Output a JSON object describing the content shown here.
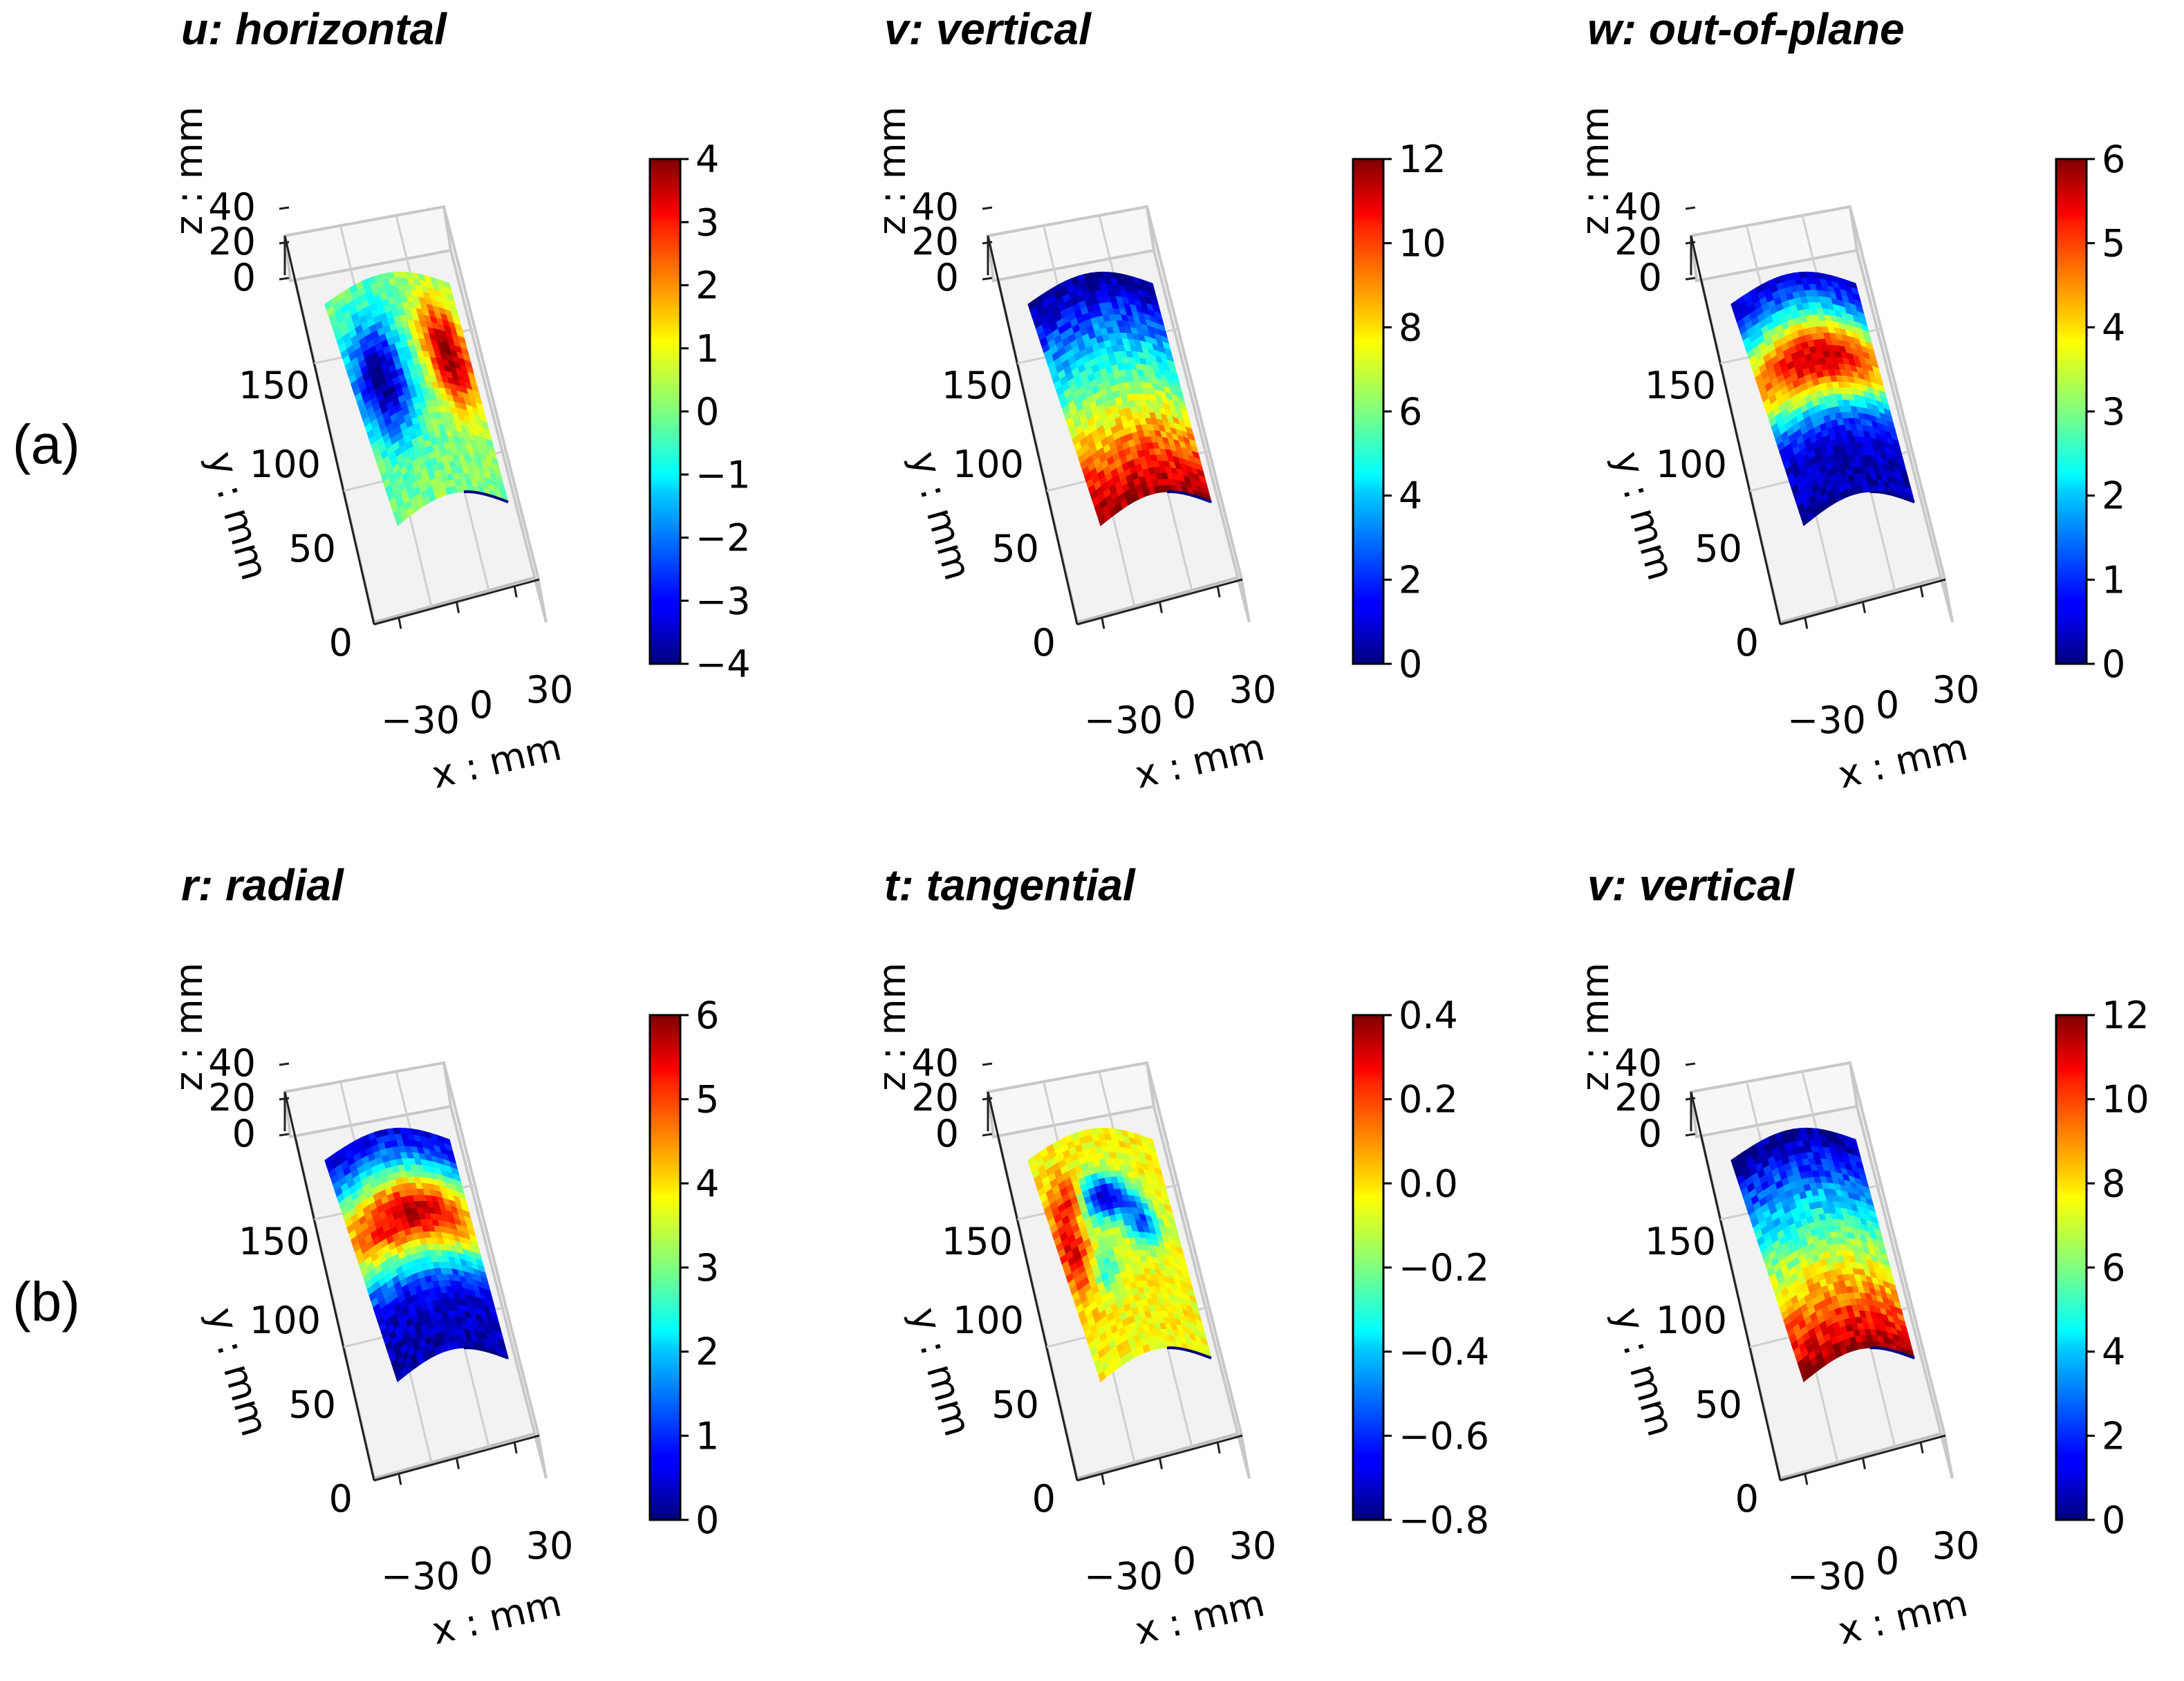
{
  "figure": {
    "row_labels": [
      "(a)",
      "(b)"
    ]
  },
  "chart_data": [
    {
      "type": "surface3d",
      "row": "(a)",
      "title": "u: horizontal",
      "xlabel": "x : mm",
      "ylabel": "y : mm",
      "zlabel": "z : mm",
      "x_ticks": [
        "−30",
        "0",
        "30"
      ],
      "y_ticks": [
        "0",
        "50",
        "100",
        "150"
      ],
      "z_ticks": [
        "0",
        "20",
        "40"
      ],
      "colormap": "jet",
      "clim": [
        -4,
        4
      ],
      "colorbar_ticks": [
        "−4",
        "−3",
        "−2",
        "−1",
        "0",
        "1",
        "2",
        "3",
        "4"
      ],
      "field": {
        "base": 0.0,
        "blobs": [
          [
            0.22,
            0.42,
            0.22,
            0.26,
            -4.0
          ],
          [
            0.82,
            0.36,
            0.2,
            0.24,
            4.0
          ]
        ],
        "gradient": 0,
        "noise": 0.12
      }
    },
    {
      "type": "surface3d",
      "row": "(a)",
      "title": "v: vertical",
      "xlabel": "x : mm",
      "ylabel": "y : mm",
      "zlabel": "z : mm",
      "x_ticks": [
        "−30",
        "0",
        "30"
      ],
      "y_ticks": [
        "0",
        "50",
        "100",
        "150"
      ],
      "z_ticks": [
        "0",
        "20",
        "40"
      ],
      "colormap": "jet",
      "clim": [
        0,
        12
      ],
      "colorbar_ticks": [
        "0",
        "2",
        "4",
        "6",
        "8",
        "10",
        "12"
      ],
      "field": {
        "base": 0.0,
        "blobs": [],
        "gradient": 12.0,
        "noise": 0.15
      }
    },
    {
      "type": "surface3d",
      "row": "(a)",
      "title": "w: out-of-plane",
      "xlabel": "x : mm",
      "ylabel": "y : mm",
      "zlabel": "z : mm",
      "x_ticks": [
        "−30",
        "0",
        "30"
      ],
      "y_ticks": [
        "0",
        "50",
        "100",
        "150"
      ],
      "z_ticks": [
        "0",
        "20",
        "40"
      ],
      "colormap": "jet",
      "clim": [
        0,
        6
      ],
      "colorbar_ticks": [
        "0",
        "1",
        "2",
        "3",
        "4",
        "5",
        "6"
      ],
      "field": {
        "base": 0.3,
        "blobs": [
          [
            0.5,
            0.38,
            0.9,
            0.22,
            5.3
          ]
        ],
        "gradient": 0,
        "noise": 0.12
      }
    },
    {
      "type": "surface3d",
      "row": "(b)",
      "title": "r: radial",
      "xlabel": "x : mm",
      "ylabel": "y : mm",
      "zlabel": "z : mm",
      "x_ticks": [
        "−30",
        "0",
        "30"
      ],
      "y_ticks": [
        "0",
        "50",
        "100",
        "150"
      ],
      "z_ticks": [
        "0",
        "20",
        "40"
      ],
      "colormap": "jet",
      "clim": [
        0,
        6
      ],
      "colorbar_ticks": [
        "0",
        "1",
        "2",
        "3",
        "4",
        "5",
        "6"
      ],
      "field": {
        "base": 0.3,
        "blobs": [
          [
            0.5,
            0.38,
            0.9,
            0.22,
            5.3
          ]
        ],
        "gradient": 0,
        "noise": 0.12
      }
    },
    {
      "type": "surface3d",
      "row": "(b)",
      "title": "t: tangential",
      "xlabel": "x : mm",
      "ylabel": "y : mm",
      "zlabel": "z : mm",
      "x_ticks": [
        "−30",
        "0",
        "30"
      ],
      "y_ticks": [
        "0",
        "50",
        "100",
        "150"
      ],
      "z_ticks": [
        "0",
        "20",
        "40"
      ],
      "colormap": "jet",
      "clim": [
        -0.8,
        0.4
      ],
      "colorbar_ticks": [
        "−0.8",
        "−0.6",
        "−0.4",
        "−0.2",
        "0.0",
        "0.2",
        "0.4"
      ],
      "field": {
        "base": -0.05,
        "blobs": [
          [
            0.45,
            0.3,
            0.18,
            0.1,
            -0.7
          ],
          [
            0.7,
            0.42,
            0.15,
            0.12,
            -0.5
          ],
          [
            0.1,
            0.45,
            0.12,
            0.2,
            0.35
          ],
          [
            0.2,
            0.25,
            0.1,
            0.1,
            0.25
          ],
          [
            0.3,
            0.6,
            0.1,
            0.1,
            -0.3
          ]
        ],
        "gradient": 0,
        "noise": 0.12
      }
    },
    {
      "type": "surface3d",
      "row": "(b)",
      "title": "v: vertical",
      "xlabel": "x : mm",
      "ylabel": "y : mm",
      "zlabel": "z : mm",
      "x_ticks": [
        "−30",
        "0",
        "30"
      ],
      "y_ticks": [
        "0",
        "50",
        "100",
        "150"
      ],
      "z_ticks": [
        "0",
        "20",
        "40"
      ],
      "colormap": "jet",
      "clim": [
        0,
        12
      ],
      "colorbar_ticks": [
        "0",
        "2",
        "4",
        "6",
        "8",
        "10",
        "12"
      ],
      "field": {
        "base": 0.0,
        "blobs": [],
        "gradient": 12.0,
        "noise": 0.15
      }
    }
  ]
}
